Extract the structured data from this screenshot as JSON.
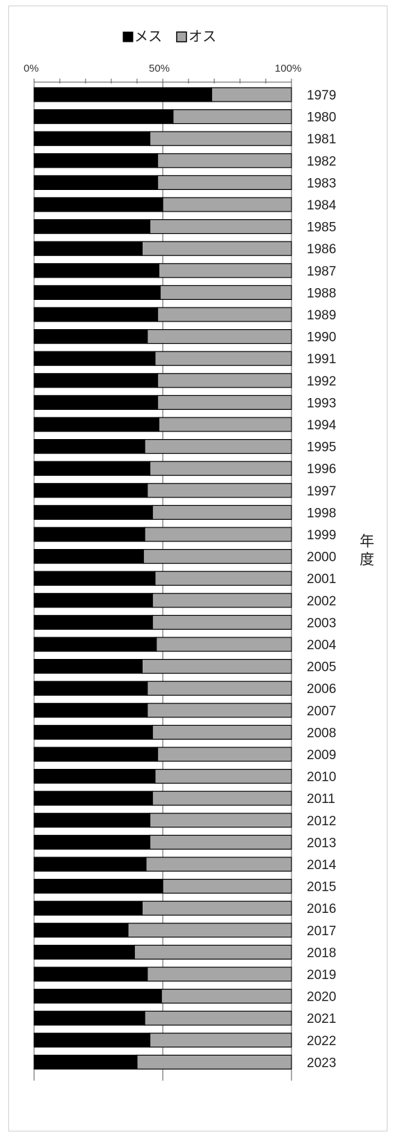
{
  "chart_data": {
    "type": "bar",
    "orientation": "horizontal",
    "stacking": "percent",
    "legend": {
      "position": "top-center",
      "items": [
        "メス",
        "オス"
      ]
    },
    "xaxis": {
      "ticks": [
        "0%",
        "50%",
        "100%"
      ],
      "range": [
        0,
        100
      ],
      "gridlines": "major-only"
    },
    "ylabel": "年度",
    "categories": [
      "1979",
      "1980",
      "1981",
      "1982",
      "1983",
      "1984",
      "1985",
      "1986",
      "1987",
      "1988",
      "1989",
      "1990",
      "1991",
      "1992",
      "1993",
      "1994",
      "1995",
      "1996",
      "1997",
      "1998",
      "1999",
      "2000",
      "2001",
      "2002",
      "2003",
      "2004",
      "2005",
      "2006",
      "2007",
      "2008",
      "2009",
      "2010",
      "2011",
      "2012",
      "2013",
      "2014",
      "2015",
      "2016",
      "2017",
      "2018",
      "2019",
      "2020",
      "2021",
      "2022",
      "2023"
    ],
    "series": [
      {
        "name": "メス",
        "color": "#000000",
        "values": [
          69,
          54,
          45,
          48,
          48,
          50,
          45,
          42,
          48.5,
          49,
          48,
          44,
          47,
          48,
          48,
          48.5,
          43,
          45,
          44,
          46,
          43,
          42.5,
          47,
          46,
          46,
          47.5,
          42,
          44,
          44,
          46,
          48,
          47,
          46,
          45,
          45,
          43.5,
          50,
          42,
          36.5,
          39,
          44,
          49.5,
          43,
          45,
          40
        ]
      },
      {
        "name": "オス",
        "color": "#a6a6a6",
        "values": [
          31,
          46,
          55,
          52,
          52,
          50,
          55,
          58,
          51.5,
          51,
          52,
          56,
          53,
          52,
          52,
          51.5,
          57,
          55,
          56,
          54,
          57,
          57.5,
          53,
          54,
          54,
          52.5,
          58,
          56,
          56,
          54,
          52,
          53,
          54,
          55,
          55,
          56.5,
          50,
          58,
          63.5,
          61,
          56,
          50.5,
          57,
          55,
          60
        ]
      }
    ]
  }
}
